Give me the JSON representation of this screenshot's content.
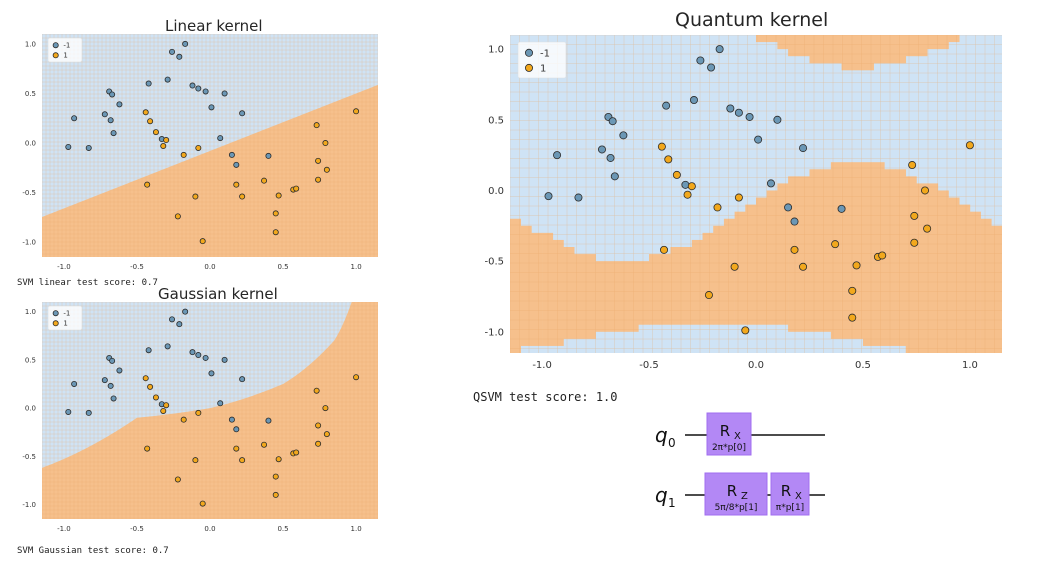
{
  "colors": {
    "region_neg": "#cfe3f5",
    "region_pos": "#f6c08c",
    "grid_pos": "#e8a566",
    "point_neg": "#6b97b5",
    "point_pos": "#f2a81d",
    "point_edge": "#2b2b2b",
    "gate": "#b388f5",
    "gate_edge": "#a06ef0"
  },
  "panels": {
    "linear": {
      "title": "Linear kernel",
      "score_text": "SVM linear test score: 0.7"
    },
    "gaussian": {
      "title": "Gaussian kernel",
      "score_text": "SVM Gaussian test score: 0.7"
    },
    "quantum": {
      "title": "Quantum kernel",
      "score_text": "QSVM test score: 1.0"
    }
  },
  "circuit": {
    "qubits": [
      "q",
      "q"
    ],
    "qubit_indices": [
      "0",
      "1"
    ],
    "gates": [
      {
        "qubit": 0,
        "name": "R",
        "sub": "X",
        "param": "2π*p[0]"
      },
      {
        "qubit": 1,
        "name": "R",
        "sub": "Z",
        "param": "5π/8*p[1]"
      },
      {
        "qubit": 1,
        "name": "R",
        "sub": "X",
        "param": "π*p[1]"
      }
    ]
  },
  "chart_data": [
    {
      "type": "scatter",
      "title": "Linear kernel",
      "xlim": [
        -1.15,
        1.15
      ],
      "ylim": [
        -1.15,
        1.1
      ],
      "xticks": [
        "-1.0",
        "-0.5",
        "0.0",
        "0.5",
        "1.0"
      ],
      "yticks": [
        "1.0",
        "0.5",
        "0.0",
        "-0.5",
        "-1.0"
      ],
      "grid": true,
      "legend": {
        "placement": "top-left",
        "entries": [
          "-1",
          "1"
        ]
      },
      "decision_boundary": {
        "kind": "linear",
        "slope": 0.58,
        "intercept": -0.08
      },
      "series": [
        {
          "name": "-1",
          "points": [
            [
              -0.97,
              -0.04
            ],
            [
              -0.93,
              0.25
            ],
            [
              -0.83,
              -0.05
            ],
            [
              -0.72,
              0.29
            ],
            [
              -0.69,
              0.52
            ],
            [
              -0.68,
              0.23
            ],
            [
              -0.67,
              0.49
            ],
            [
              -0.66,
              0.1
            ],
            [
              -0.62,
              0.39
            ],
            [
              -0.42,
              0.6
            ],
            [
              -0.33,
              0.04
            ],
            [
              -0.29,
              0.64
            ],
            [
              -0.26,
              0.92
            ],
            [
              -0.21,
              0.87
            ],
            [
              -0.17,
              1.0
            ],
            [
              -0.12,
              0.58
            ],
            [
              -0.08,
              0.55
            ],
            [
              -0.03,
              0.52
            ],
            [
              0.01,
              0.36
            ],
            [
              0.07,
              0.05
            ],
            [
              0.1,
              0.5
            ],
            [
              0.15,
              -0.12
            ],
            [
              0.18,
              -0.22
            ],
            [
              0.22,
              0.3
            ],
            [
              0.4,
              -0.13
            ]
          ]
        },
        {
          "name": "1",
          "points": [
            [
              -0.44,
              0.31
            ],
            [
              -0.43,
              -0.42
            ],
            [
              -0.41,
              0.22
            ],
            [
              -0.37,
              0.11
            ],
            [
              -0.32,
              -0.03
            ],
            [
              -0.3,
              0.03
            ],
            [
              -0.22,
              -0.74
            ],
            [
              -0.18,
              -0.12
            ],
            [
              -0.1,
              -0.54
            ],
            [
              -0.08,
              -0.05
            ],
            [
              -0.05,
              -0.99
            ],
            [
              0.18,
              -0.42
            ],
            [
              0.22,
              -0.54
            ],
            [
              0.37,
              -0.38
            ],
            [
              0.45,
              -0.71
            ],
            [
              0.45,
              -0.9
            ],
            [
              0.47,
              -0.53
            ],
            [
              0.57,
              -0.47
            ],
            [
              0.59,
              -0.46
            ],
            [
              0.73,
              0.18
            ],
            [
              0.74,
              -0.37
            ],
            [
              0.74,
              -0.18
            ],
            [
              0.79,
              0.0
            ],
            [
              0.8,
              -0.27
            ],
            [
              1.0,
              0.32
            ]
          ]
        }
      ]
    },
    {
      "type": "scatter",
      "title": "Gaussian kernel",
      "xlim": [
        -1.15,
        1.15
      ],
      "ylim": [
        -1.15,
        1.1
      ],
      "xticks": [
        "-1.0",
        "-0.5",
        "0.0",
        "0.5",
        "1.0"
      ],
      "yticks": [
        "1.0",
        "0.5",
        "0.0",
        "-0.5",
        "-1.0"
      ],
      "grid": true,
      "legend": {
        "placement": "top-left",
        "entries": [
          "-1",
          "1"
        ]
      },
      "decision_boundary": {
        "kind": "curved",
        "through": [
          [
            -1.15,
            -0.62
          ],
          [
            -0.5,
            -0.1
          ],
          [
            0.0,
            0.0
          ],
          [
            0.5,
            0.25
          ],
          [
            0.85,
            0.7
          ],
          [
            0.97,
            1.1
          ]
        ]
      },
      "series": [
        {
          "name": "-1",
          "points": [
            [
              -0.97,
              -0.04
            ],
            [
              -0.93,
              0.25
            ],
            [
              -0.83,
              -0.05
            ],
            [
              -0.72,
              0.29
            ],
            [
              -0.69,
              0.52
            ],
            [
              -0.68,
              0.23
            ],
            [
              -0.67,
              0.49
            ],
            [
              -0.66,
              0.1
            ],
            [
              -0.62,
              0.39
            ],
            [
              -0.42,
              0.6
            ],
            [
              -0.33,
              0.04
            ],
            [
              -0.29,
              0.64
            ],
            [
              -0.26,
              0.92
            ],
            [
              -0.21,
              0.87
            ],
            [
              -0.17,
              1.0
            ],
            [
              -0.12,
              0.58
            ],
            [
              -0.08,
              0.55
            ],
            [
              -0.03,
              0.52
            ],
            [
              0.01,
              0.36
            ],
            [
              0.07,
              0.05
            ],
            [
              0.1,
              0.5
            ],
            [
              0.15,
              -0.12
            ],
            [
              0.18,
              -0.22
            ],
            [
              0.22,
              0.3
            ],
            [
              0.4,
              -0.13
            ]
          ]
        },
        {
          "name": "1",
          "points": [
            [
              -0.44,
              0.31
            ],
            [
              -0.43,
              -0.42
            ],
            [
              -0.41,
              0.22
            ],
            [
              -0.37,
              0.11
            ],
            [
              -0.32,
              -0.03
            ],
            [
              -0.3,
              0.03
            ],
            [
              -0.22,
              -0.74
            ],
            [
              -0.18,
              -0.12
            ],
            [
              -0.1,
              -0.54
            ],
            [
              -0.08,
              -0.05
            ],
            [
              -0.05,
              -0.99
            ],
            [
              0.18,
              -0.42
            ],
            [
              0.22,
              -0.54
            ],
            [
              0.37,
              -0.38
            ],
            [
              0.45,
              -0.71
            ],
            [
              0.45,
              -0.9
            ],
            [
              0.47,
              -0.53
            ],
            [
              0.57,
              -0.47
            ],
            [
              0.59,
              -0.46
            ],
            [
              0.73,
              0.18
            ],
            [
              0.74,
              -0.37
            ],
            [
              0.74,
              -0.18
            ],
            [
              0.79,
              0.0
            ],
            [
              0.8,
              -0.27
            ],
            [
              1.0,
              0.32
            ]
          ]
        }
      ]
    },
    {
      "type": "scatter",
      "title": "Quantum kernel",
      "xlim": [
        -1.15,
        1.15
      ],
      "ylim": [
        -1.15,
        1.1
      ],
      "xticks": [
        "-1.0",
        "-0.5",
        "0.0",
        "0.5",
        "1.0"
      ],
      "yticks": [
        "1.0",
        "0.5",
        "0.0",
        "-0.5",
        "-1.0"
      ],
      "grid": true,
      "legend": {
        "placement": "top-left",
        "entries": [
          "-1",
          "1"
        ]
      },
      "decision_boundary": {
        "kind": "wavy",
        "lower_wave": {
          "base": -0.15,
          "amp": 0.35,
          "freq": 2.9,
          "phase": 0.2
        },
        "upper_wave": {
          "base": 1.12,
          "amp": 0.25,
          "freq": 2.9,
          "phase": 0.2
        }
      },
      "series": [
        {
          "name": "-1",
          "points": [
            [
              -0.97,
              -0.04
            ],
            [
              -0.93,
              0.25
            ],
            [
              -0.83,
              -0.05
            ],
            [
              -0.72,
              0.29
            ],
            [
              -0.69,
              0.52
            ],
            [
              -0.68,
              0.23
            ],
            [
              -0.67,
              0.49
            ],
            [
              -0.66,
              0.1
            ],
            [
              -0.62,
              0.39
            ],
            [
              -0.42,
              0.6
            ],
            [
              -0.33,
              0.04
            ],
            [
              -0.29,
              0.64
            ],
            [
              -0.26,
              0.92
            ],
            [
              -0.21,
              0.87
            ],
            [
              -0.17,
              1.0
            ],
            [
              -0.12,
              0.58
            ],
            [
              -0.08,
              0.55
            ],
            [
              -0.03,
              0.52
            ],
            [
              0.01,
              0.36
            ],
            [
              0.07,
              0.05
            ],
            [
              0.1,
              0.5
            ],
            [
              0.15,
              -0.12
            ],
            [
              0.18,
              -0.22
            ],
            [
              0.22,
              0.3
            ],
            [
              0.4,
              -0.13
            ]
          ]
        },
        {
          "name": "1",
          "points": [
            [
              -0.44,
              0.31
            ],
            [
              -0.43,
              -0.42
            ],
            [
              -0.41,
              0.22
            ],
            [
              -0.37,
              0.11
            ],
            [
              -0.32,
              -0.03
            ],
            [
              -0.3,
              0.03
            ],
            [
              -0.22,
              -0.74
            ],
            [
              -0.18,
              -0.12
            ],
            [
              -0.1,
              -0.54
            ],
            [
              -0.08,
              -0.05
            ],
            [
              -0.05,
              -0.99
            ],
            [
              0.18,
              -0.42
            ],
            [
              0.22,
              -0.54
            ],
            [
              0.37,
              -0.38
            ],
            [
              0.45,
              -0.71
            ],
            [
              0.45,
              -0.9
            ],
            [
              0.47,
              -0.53
            ],
            [
              0.57,
              -0.47
            ],
            [
              0.59,
              -0.46
            ],
            [
              0.73,
              0.18
            ],
            [
              0.74,
              -0.37
            ],
            [
              0.74,
              -0.18
            ],
            [
              0.79,
              0.0
            ],
            [
              0.8,
              -0.27
            ],
            [
              1.0,
              0.32
            ]
          ]
        }
      ]
    }
  ]
}
